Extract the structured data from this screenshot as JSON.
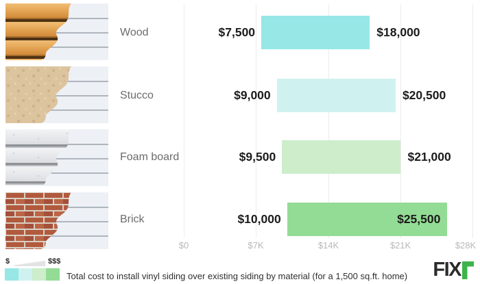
{
  "chart_data": {
    "type": "bar",
    "subtype": "horizontal-range-bars",
    "caption": "Total cost to install vinyl siding over existing siding by material (for a 1,500 sq.ft. home)",
    "categories": [
      "Wood",
      "Stucco",
      "Foam board",
      "Brick"
    ],
    "bars": [
      {
        "label": "Wood",
        "min": 7500,
        "max": 18000,
        "min_label": "$7,500",
        "max_label": "$18,000",
        "color": "#97E7E7",
        "max_label_inside": false
      },
      {
        "label": "Stucco",
        "min": 9000,
        "max": 20500,
        "min_label": "$9,000",
        "max_label": "$20,500",
        "color": "#CFF2F0",
        "max_label_inside": false
      },
      {
        "label": "Foam board",
        "min": 9500,
        "max": 21000,
        "min_label": "$9,500",
        "max_label": "$21,000",
        "color": "#CDEDCB",
        "max_label_inside": false
      },
      {
        "label": "Brick",
        "min": 10000,
        "max": 25500,
        "min_label": "$10,000",
        "max_label": "$25,500",
        "color": "#93DC95",
        "max_label_inside": true
      }
    ],
    "x_ticks": [
      "$0",
      "$7K",
      "$14K",
      "$21K",
      "$28K"
    ],
    "x_range": [
      0,
      28000
    ],
    "grid": true,
    "legend_position": "bottom-left"
  },
  "legend": {
    "low_label": "$",
    "high_label": "$$$",
    "colors": [
      "#97E7E7",
      "#CFF2F0",
      "#CDEDCB",
      "#93DC95"
    ]
  },
  "caption": "Total cost to install vinyl siding over existing siding by material (for a 1,500 sq.ft. home)",
  "thumbnails": [
    "wood-siding-photo",
    "stucco-siding-photo",
    "foam-board-siding-photo",
    "brick-siding-photo"
  ],
  "logo": {
    "text": "FIX",
    "accent_letter": "r",
    "accent_color": "#3CB44B"
  }
}
